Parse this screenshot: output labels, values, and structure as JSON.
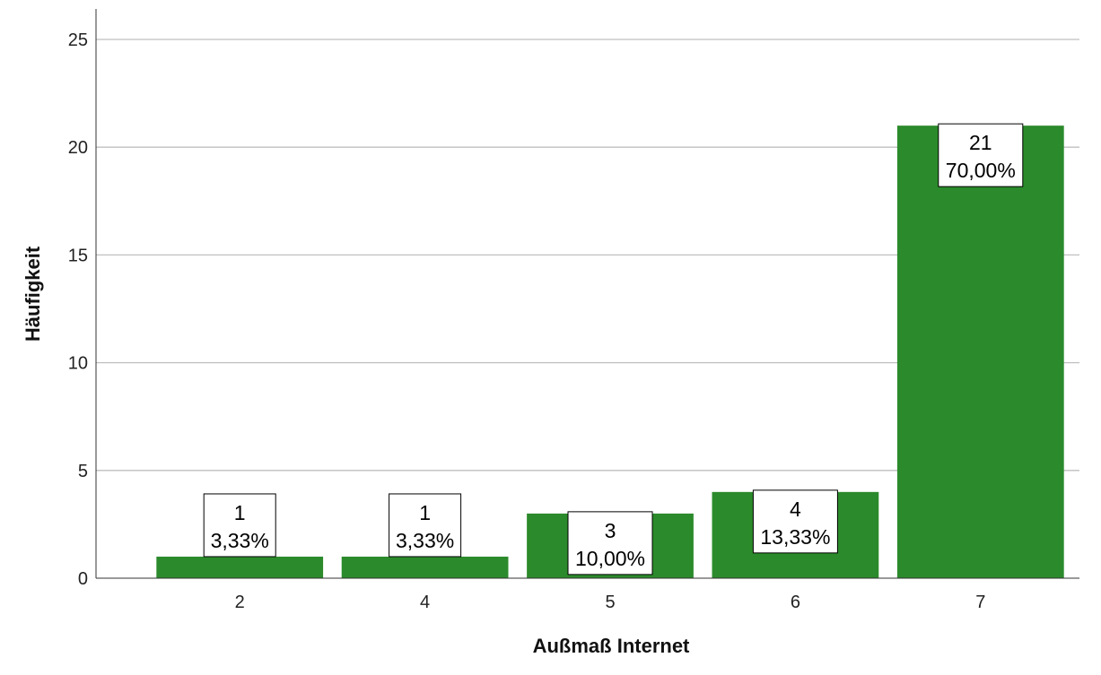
{
  "chart_data": {
    "type": "bar",
    "categories": [
      "2",
      "4",
      "5",
      "6",
      "7"
    ],
    "values": [
      1,
      1,
      3,
      4,
      21
    ],
    "percent_labels": [
      "3,33%",
      "3,33%",
      "10,00%",
      "13,33%",
      "70,00%"
    ],
    "xlabel": "Außmaß Internet",
    "ylabel": "Häufigkeit",
    "ylim": [
      0,
      25
    ],
    "yticks": [
      0,
      5,
      10,
      15,
      20,
      25
    ],
    "grid": true,
    "bar_color": "#2b8a2b",
    "label_position": "inside-top"
  }
}
